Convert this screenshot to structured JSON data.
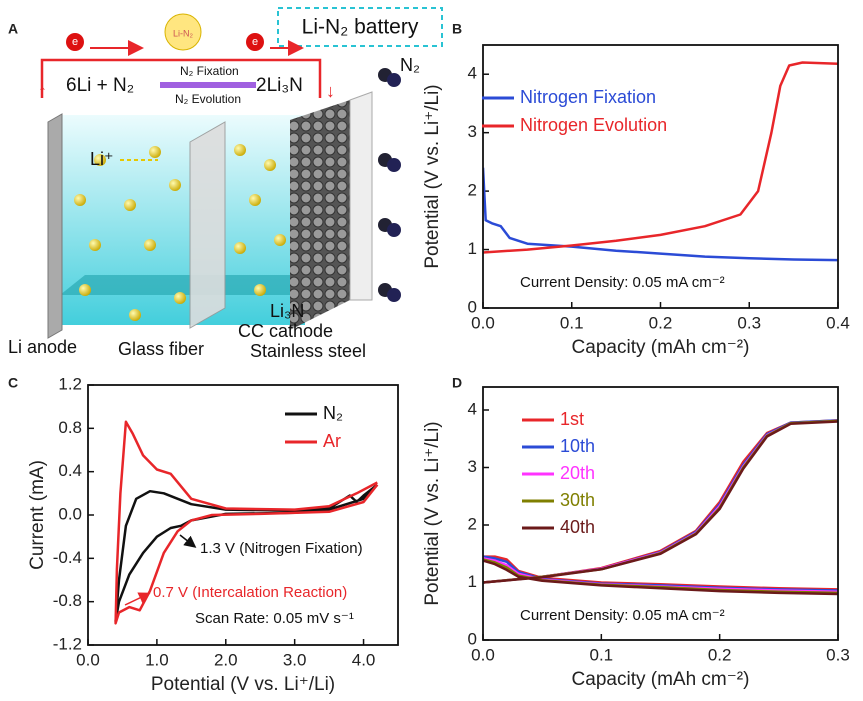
{
  "diagram": {
    "panel": "A",
    "title": "Li-N₂ battery",
    "bulb": "Li-N₂",
    "electron": "e",
    "reaction": {
      "left": "6Li + N₂",
      "forward": "N₂ Fixation",
      "backward": "N₂ Evolution",
      "right": "2Li₃N"
    },
    "gas": "N₂",
    "ion": "Li⁺",
    "product": "Li₃N",
    "parts": [
      "Li anode",
      "Glass fiber",
      "CC cathode",
      "Stainless steel"
    ]
  },
  "chart_data": [
    {
      "type": "line",
      "panel": "B",
      "xlabel": "Capacity (mAh cm⁻²)",
      "ylabel": "Potential (V vs. Li⁺/Li)",
      "xlim": [
        0,
        0.4
      ],
      "xticks": [
        {
          "value": 0,
          "label": "0.0"
        },
        0.1,
        0.2,
        0.3,
        0.4
      ],
      "ylim": [
        0,
        4.5
      ],
      "yticks": [
        0,
        1,
        2,
        3,
        4
      ],
      "annotations": [
        {
          "text": "Current Density: 0.05 mA cm⁻²",
          "color": "#111111"
        }
      ],
      "series": [
        {
          "name": "Nitrogen Fixation",
          "color": "#2b4bd6",
          "x": [
            0,
            0.003,
            0.01,
            0.02,
            0.03,
            0.05,
            0.1,
            0.15,
            0.2,
            0.25,
            0.3,
            0.35,
            0.4
          ],
          "values": [
            2.4,
            1.5,
            1.45,
            1.4,
            1.2,
            1.1,
            1.05,
            0.98,
            0.93,
            0.88,
            0.85,
            0.83,
            0.82
          ]
        },
        {
          "name": "Nitrogen Evolution",
          "color": "#e8262a",
          "x": [
            0,
            0.05,
            0.1,
            0.15,
            0.2,
            0.25,
            0.29,
            0.31,
            0.325,
            0.335,
            0.345,
            0.36,
            0.4
          ],
          "values": [
            0.95,
            1.0,
            1.07,
            1.15,
            1.25,
            1.4,
            1.6,
            2.0,
            3.0,
            3.8,
            4.15,
            4.2,
            4.18
          ]
        }
      ]
    },
    {
      "type": "line",
      "panel": "C",
      "xlabel": "Potential (V vs. Li⁺/Li)",
      "ylabel": "Current (mA)",
      "xlim": [
        0,
        4.5
      ],
      "xticks": [
        {
          "value": 0,
          "label": "0.0"
        },
        {
          "value": 1,
          "label": "1.0"
        },
        {
          "value": 2,
          "label": "2.0"
        },
        {
          "value": 3,
          "label": "3.0"
        },
        {
          "value": 4,
          "label": "4.0"
        }
      ],
      "ylim": [
        -1.2,
        1.2
      ],
      "yticks": [
        -1.2,
        -0.8,
        -0.4,
        {
          "value": 0,
          "label": "0.0"
        },
        0.4,
        0.8,
        1.2
      ],
      "annotations": [
        {
          "text": "1.3 V (Nitrogen Fixation)",
          "color": "#111111"
        },
        {
          "text": "0.7 V (Intercalation Reaction)",
          "color": "#e8262a"
        },
        {
          "text": "Scan Rate: 0.05 mV s⁻¹",
          "color": "#111111"
        }
      ],
      "series": [
        {
          "name": "N₂",
          "color": "#111111",
          "x": [
            4.2,
            4.0,
            3.5,
            3.0,
            2.0,
            1.5,
            1.35,
            1.2,
            1.0,
            0.8,
            0.6,
            0.45,
            0.4,
            0.45,
            0.55,
            0.7,
            0.9,
            1.1,
            1.5,
            2.0,
            3.0,
            3.5,
            3.8,
            3.9,
            4.0,
            4.2
          ],
          "values": [
            0.28,
            0.15,
            0.05,
            0.02,
            0.01,
            -0.05,
            -0.1,
            -0.12,
            -0.2,
            -0.35,
            -0.55,
            -0.8,
            -0.98,
            -0.6,
            -0.1,
            0.15,
            0.22,
            0.2,
            0.1,
            0.05,
            0.04,
            0.06,
            0.18,
            0.12,
            0.18,
            0.28
          ]
        },
        {
          "name": "Ar",
          "color": "#e8262a",
          "x": [
            4.2,
            4.0,
            3.5,
            2.5,
            1.8,
            1.5,
            1.3,
            1.1,
            0.9,
            0.75,
            0.6,
            0.45,
            0.4,
            0.42,
            0.47,
            0.55,
            0.65,
            0.8,
            1.0,
            1.2,
            1.5,
            2.0,
            3.0,
            3.5,
            3.9,
            4.2
          ],
          "values": [
            0.28,
            0.12,
            0.03,
            0.01,
            0.0,
            -0.05,
            -0.15,
            -0.35,
            -0.7,
            -0.88,
            -0.85,
            -0.9,
            -1.0,
            -0.5,
            0.2,
            0.86,
            0.75,
            0.55,
            0.42,
            0.38,
            0.15,
            0.06,
            0.05,
            0.08,
            0.2,
            0.3
          ]
        }
      ]
    },
    {
      "type": "line",
      "panel": "D",
      "xlabel": "Capacity (mAh cm⁻²)",
      "ylabel": "Potential (V vs. Li⁺/Li)",
      "xlim": [
        0,
        0.3
      ],
      "xticks": [
        {
          "value": 0,
          "label": "0.0"
        },
        0.1,
        0.2,
        0.3
      ],
      "ylim": [
        0,
        4.4
      ],
      "yticks": [
        0,
        1,
        2,
        3,
        4
      ],
      "annotations": [
        {
          "text": "Current Density: 0.05 mA cm⁻²",
          "color": "#111111"
        }
      ],
      "series": [
        {
          "name": "1st",
          "color": "#e8262a",
          "x": [
            0,
            0.01,
            0.02,
            0.03,
            0.05,
            0.1,
            0.15,
            0.2,
            0.25,
            0.3,
            null,
            0,
            0.05,
            0.1,
            0.15,
            0.18,
            0.2,
            0.22,
            0.24,
            0.26,
            0.3
          ],
          "values": [
            1.45,
            1.45,
            1.4,
            1.2,
            1.08,
            1.0,
            0.97,
            0.93,
            0.9,
            0.88,
            null,
            1.0,
            1.1,
            1.25,
            1.55,
            1.9,
            2.4,
            3.1,
            3.6,
            3.78,
            3.82
          ]
        },
        {
          "name": "10th",
          "color": "#2b4bd6",
          "x": [
            0,
            0.01,
            0.02,
            0.03,
            0.05,
            0.1,
            0.15,
            0.2,
            0.25,
            0.3,
            null,
            0,
            0.05,
            0.1,
            0.15,
            0.18,
            0.2,
            0.22,
            0.24,
            0.26,
            0.3
          ],
          "values": [
            1.45,
            1.42,
            1.36,
            1.18,
            1.06,
            0.98,
            0.95,
            0.91,
            0.88,
            0.86,
            null,
            1.0,
            1.1,
            1.24,
            1.53,
            1.88,
            2.36,
            3.05,
            3.58,
            3.78,
            3.82
          ]
        },
        {
          "name": "20th",
          "color": "#ff33ff",
          "x": [
            0,
            0.01,
            0.02,
            0.03,
            0.05,
            0.1,
            0.15,
            0.2,
            0.25,
            0.3,
            null,
            0,
            0.05,
            0.1,
            0.15,
            0.18,
            0.2,
            0.22,
            0.24,
            0.26,
            0.3
          ],
          "values": [
            1.42,
            1.38,
            1.3,
            1.15,
            1.05,
            0.97,
            0.93,
            0.89,
            0.86,
            0.84,
            null,
            1.0,
            1.1,
            1.24,
            1.52,
            1.86,
            2.33,
            3.02,
            3.56,
            3.77,
            3.81
          ]
        },
        {
          "name": "30th",
          "color": "#7f7f00",
          "x": [
            0,
            0.01,
            0.02,
            0.03,
            0.05,
            0.1,
            0.15,
            0.2,
            0.25,
            0.3,
            null,
            0,
            0.05,
            0.1,
            0.15,
            0.18,
            0.2,
            0.22,
            0.24,
            0.26,
            0.3
          ],
          "values": [
            1.4,
            1.35,
            1.26,
            1.12,
            1.04,
            0.96,
            0.92,
            0.87,
            0.84,
            0.82,
            null,
            1.0,
            1.1,
            1.23,
            1.51,
            1.85,
            2.3,
            3.0,
            3.55,
            3.77,
            3.81
          ]
        },
        {
          "name": "40th",
          "color": "#6b1a1a",
          "x": [
            0,
            0.01,
            0.02,
            0.03,
            0.05,
            0.1,
            0.15,
            0.2,
            0.25,
            0.3,
            null,
            0,
            0.05,
            0.1,
            0.15,
            0.18,
            0.2,
            0.22,
            0.24,
            0.26,
            0.3
          ],
          "values": [
            1.38,
            1.32,
            1.22,
            1.1,
            1.03,
            0.95,
            0.9,
            0.85,
            0.82,
            0.8,
            null,
            1.0,
            1.09,
            1.23,
            1.5,
            1.84,
            2.28,
            2.98,
            3.54,
            3.76,
            3.8
          ]
        }
      ]
    }
  ]
}
